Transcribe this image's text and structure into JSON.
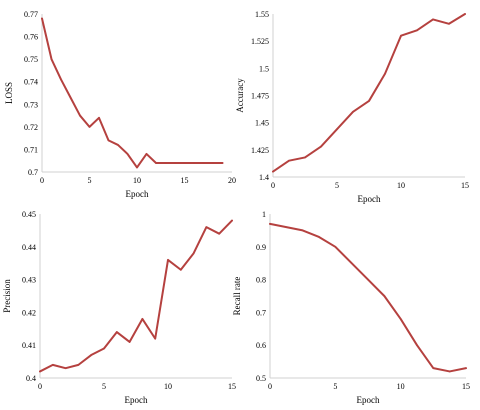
{
  "chart_data": [
    {
      "type": "line",
      "xlabel": "Epoch",
      "ylabel": "LOSS",
      "xlim": [
        0,
        20
      ],
      "ylim": [
        0.7,
        0.77
      ],
      "xticks": [
        0,
        5,
        10,
        15,
        20
      ],
      "yticks": [
        0.7,
        0.71,
        0.72,
        0.73,
        0.74,
        0.75,
        0.76,
        0.77
      ],
      "xtick_labels": [
        "0",
        "5",
        "10",
        "15",
        "20"
      ],
      "ytick_labels": [
        "0.7",
        "0.71",
        "0.72",
        "0.73",
        "0.74",
        "0.75",
        "0.76",
        "0.77"
      ],
      "grid": false,
      "line_color": "#b5413f",
      "series": [
        {
          "x": [
            0,
            1,
            2,
            3,
            4,
            5,
            6,
            7,
            8,
            9,
            10,
            11,
            12,
            13,
            14,
            15,
            16,
            17,
            18,
            19
          ],
          "values": [
            0.768,
            0.75,
            0.741,
            0.733,
            0.725,
            0.72,
            0.724,
            0.714,
            0.712,
            0.708,
            0.702,
            0.708,
            0.704,
            0.704,
            0.704,
            0.704,
            0.704,
            0.704,
            0.704,
            0.704
          ]
        }
      ]
    },
    {
      "type": "line",
      "xlabel": "Epoch",
      "ylabel": "Accuracy",
      "xlim": [
        0,
        15
      ],
      "ylim": [
        1.4,
        1.55
      ],
      "xticks": [
        0,
        5,
        10,
        15
      ],
      "yticks": [
        1.4,
        1.425,
        1.45,
        1.475,
        1.5,
        1.525,
        1.55
      ],
      "xtick_labels": [
        "0",
        "5",
        "10",
        "15"
      ],
      "ytick_labels": [
        "1.4",
        "1.425",
        "1.45",
        "1.475",
        "1.5",
        "1.525",
        "1.55"
      ],
      "grid": false,
      "line_color": "#b5413f",
      "series": [
        {
          "x": [
            0,
            1.25,
            2.5,
            3.75,
            5,
            6.25,
            7.5,
            8.75,
            10,
            11.25,
            12.5,
            13.75,
            15
          ],
          "values": [
            1.405,
            1.415,
            1.418,
            1.428,
            1.444,
            1.46,
            1.47,
            1.495,
            1.53,
            1.535,
            1.545,
            1.541,
            1.55
          ]
        }
      ]
    },
    {
      "type": "line",
      "xlabel": "Epoch",
      "ylabel": "Precision",
      "xlim": [
        0,
        15
      ],
      "ylim": [
        0.4,
        0.45
      ],
      "xticks": [
        0,
        5,
        10,
        15
      ],
      "yticks": [
        0.4,
        0.41,
        0.42,
        0.43,
        0.44,
        0.45
      ],
      "xtick_labels": [
        "0",
        "5",
        "10",
        "15"
      ],
      "ytick_labels": [
        "0.4",
        "0.41",
        "0.42",
        "0.43",
        "0.44",
        "0.45"
      ],
      "grid": false,
      "line_color": "#b5413f",
      "series": [
        {
          "x": [
            0,
            1,
            2,
            3,
            4,
            5,
            6,
            7,
            8,
            9,
            10,
            11,
            12,
            13,
            14,
            15
          ],
          "values": [
            0.402,
            0.404,
            0.403,
            0.404,
            0.407,
            0.409,
            0.414,
            0.411,
            0.418,
            0.412,
            0.436,
            0.433,
            0.438,
            0.446,
            0.444,
            0.448
          ]
        }
      ]
    },
    {
      "type": "line",
      "xlabel": "Epoch",
      "ylabel": "Recall rate",
      "xlim": [
        0,
        15
      ],
      "ylim": [
        0.5,
        1
      ],
      "xticks": [
        0,
        5,
        10,
        15
      ],
      "yticks": [
        0.5,
        0.6,
        0.7,
        0.8,
        0.9,
        1
      ],
      "xtick_labels": [
        "0",
        "5",
        "10",
        "15"
      ],
      "ytick_labels": [
        "0.5",
        "0.6",
        "0.7",
        "0.8",
        "0.9",
        "1"
      ],
      "grid": false,
      "line_color": "#b5413f",
      "series": [
        {
          "x": [
            0,
            1.25,
            2.5,
            3.75,
            5,
            6.25,
            7.5,
            8.75,
            10,
            11.25,
            12.5,
            13.75,
            15
          ],
          "values": [
            0.97,
            0.96,
            0.95,
            0.93,
            0.9,
            0.85,
            0.8,
            0.75,
            0.68,
            0.6,
            0.53,
            0.52,
            0.53
          ]
        }
      ]
    }
  ]
}
